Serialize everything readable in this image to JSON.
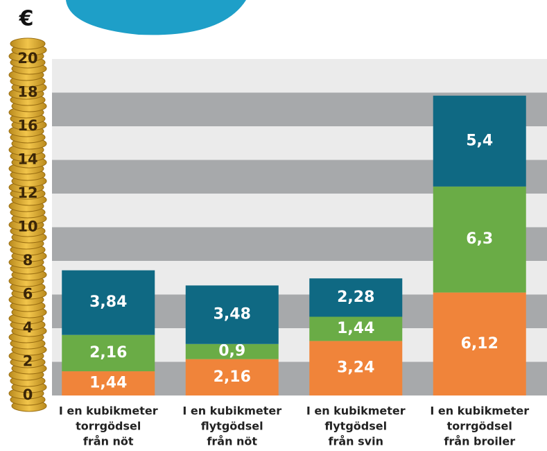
{
  "chart_data": {
    "type": "stacked_bar",
    "y_label": "€",
    "categories": [
      [
        "I en  kubikmeter",
        "torrgödsel",
        "från nöt"
      ],
      [
        "I en kubikmeter",
        "flytgödsel",
        "från nöt"
      ],
      [
        "I en kubikmeter",
        "flytgödsel",
        "från svin"
      ],
      [
        "I en kubikmeter",
        "torrgödsel",
        "från broiler"
      ]
    ],
    "series": [
      {
        "color": "#f0843a",
        "values": [
          1.44,
          2.16,
          3.24,
          6.12
        ],
        "value_labels": [
          "1,44",
          "2,16",
          "3,24",
          "6,12"
        ]
      },
      {
        "color": "#6aac46",
        "values": [
          2.16,
          0.9,
          1.44,
          6.3
        ],
        "value_labels": [
          "2,16",
          "0,9",
          "1,44",
          "6,3"
        ]
      },
      {
        "color": "#0f6983",
        "values": [
          3.84,
          3.48,
          2.28,
          5.4
        ],
        "value_labels": [
          "3,84",
          "3,48",
          "2,28",
          "5,4"
        ]
      }
    ],
    "ylim": [
      0,
      20
    ],
    "yticks": [
      0,
      2,
      4,
      6,
      8,
      10,
      12,
      14,
      16,
      18,
      20
    ]
  }
}
